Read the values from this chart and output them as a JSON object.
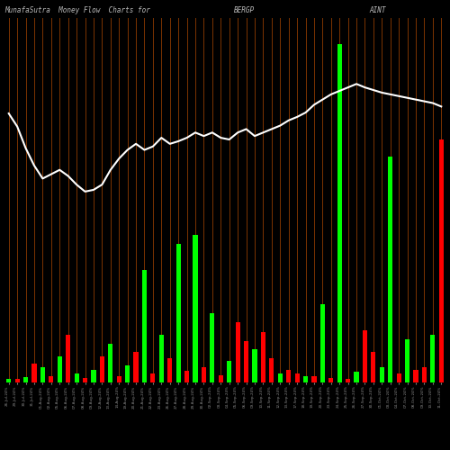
{
  "title_left": "MunafaSutra  Money Flow  Charts for",
  "title_mid": "BERGP",
  "title_right": "AINT",
  "background_color": "#000000",
  "grid_color": "#7B3300",
  "bar_width": 0.55,
  "price_line_color": "#ffffff",
  "title_color": "#bbbbbb",
  "tick_color": "#888888",
  "bar_data": [
    [
      "g",
      4
    ],
    [
      "r",
      4
    ],
    [
      "g",
      6
    ],
    [
      "r",
      22
    ],
    [
      "g",
      18
    ],
    [
      "r",
      7
    ],
    [
      "g",
      30
    ],
    [
      "r",
      55
    ],
    [
      "g",
      10
    ],
    [
      "r",
      5
    ],
    [
      "g",
      15
    ],
    [
      "r",
      30
    ],
    [
      "g",
      45
    ],
    [
      "r",
      7
    ],
    [
      "g",
      20
    ],
    [
      "r",
      35
    ],
    [
      "g",
      130
    ],
    [
      "r",
      10
    ],
    [
      "g",
      55
    ],
    [
      "r",
      28
    ],
    [
      "g",
      160
    ],
    [
      "r",
      14
    ],
    [
      "g",
      170
    ],
    [
      "r",
      18
    ],
    [
      "g",
      80
    ],
    [
      "r",
      8
    ],
    [
      "g",
      25
    ],
    [
      "r",
      70
    ],
    [
      "r",
      48
    ],
    [
      "g",
      38
    ],
    [
      "r",
      58
    ],
    [
      "r",
      28
    ],
    [
      "g",
      10
    ],
    [
      "r",
      15
    ],
    [
      "r",
      10
    ],
    [
      "g",
      7
    ],
    [
      "r",
      7
    ],
    [
      "g",
      90
    ],
    [
      "r",
      5
    ],
    [
      "g",
      390
    ],
    [
      "r",
      4
    ],
    [
      "g",
      12
    ],
    [
      "r",
      60
    ],
    [
      "r",
      35
    ],
    [
      "g",
      18
    ],
    [
      "g",
      260
    ],
    [
      "r",
      10
    ],
    [
      "g",
      50
    ],
    [
      "r",
      15
    ],
    [
      "r",
      18
    ],
    [
      "g",
      55
    ],
    [
      "r",
      280
    ]
  ],
  "price_line": [
    310,
    295,
    270,
    250,
    235,
    240,
    245,
    238,
    228,
    220,
    222,
    228,
    245,
    258,
    268,
    275,
    268,
    272,
    282,
    275,
    278,
    282,
    288,
    284,
    288,
    282,
    280,
    288,
    292,
    284,
    288,
    292,
    296,
    302,
    306,
    311,
    320,
    326,
    332,
    336,
    340,
    344,
    340,
    337,
    334,
    332,
    330,
    328,
    326,
    324,
    322,
    318
  ],
  "ymax": 420,
  "n_bars": 52
}
